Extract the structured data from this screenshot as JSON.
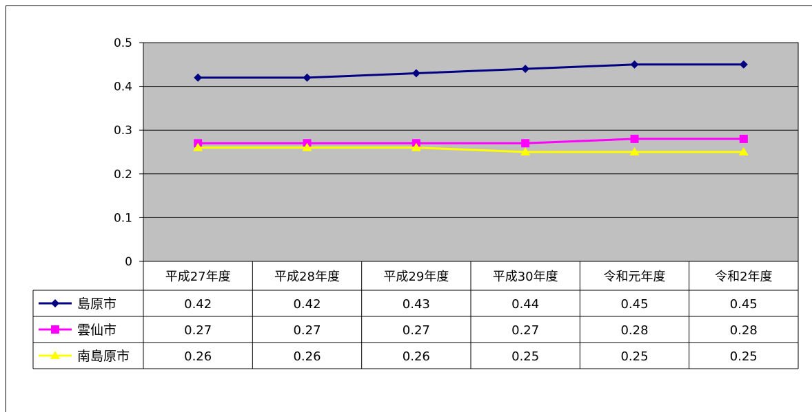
{
  "chart_data": {
    "type": "line",
    "categories": [
      "平成27年度",
      "平成28年度",
      "平成29年度",
      "平成30年度",
      "令和元年度",
      "令和2年度"
    ],
    "series": [
      {
        "name": "島原市",
        "values": [
          0.42,
          0.42,
          0.43,
          0.44,
          0.45,
          0.45
        ],
        "color": "#000080",
        "marker": "diamond"
      },
      {
        "name": "雲仙市",
        "values": [
          0.27,
          0.27,
          0.27,
          0.27,
          0.28,
          0.28
        ],
        "color": "#ff00ff",
        "marker": "square"
      },
      {
        "name": "南島原市",
        "values": [
          0.26,
          0.26,
          0.26,
          0.25,
          0.25,
          0.25
        ],
        "color": "#ffff00",
        "marker": "triangle"
      }
    ],
    "ylim": [
      0,
      0.5
    ],
    "yticks": [
      "0",
      "0.1",
      "0.2",
      "0.3",
      "0.4",
      "0.5"
    ],
    "plot_background": "#c0c0c0",
    "grid": true,
    "legend": "data-table"
  }
}
